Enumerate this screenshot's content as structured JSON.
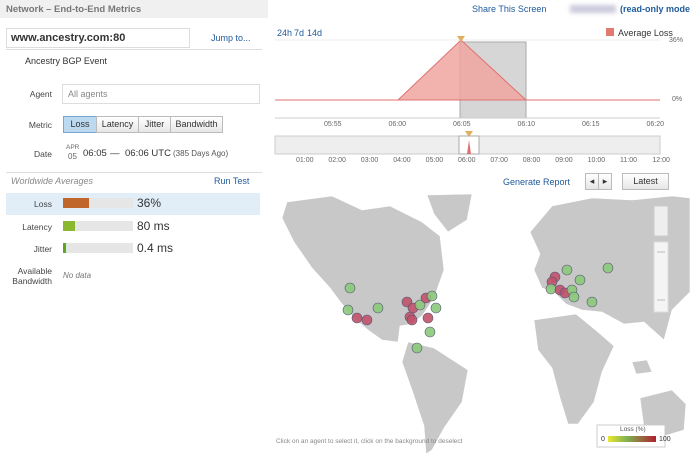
{
  "header": {
    "title": "Network – End-to-End Metrics",
    "share": "Share This Screen",
    "mode": "(read-only mode)"
  },
  "sidebar": {
    "target": "www.ancestry.com:80",
    "jump": "Jump to...",
    "event": "Ancestry BGP Event",
    "agent_label": "Agent",
    "agent_value": "All agents",
    "metric_label": "Metric",
    "metrics": [
      "Loss",
      "Latency",
      "Jitter",
      "Bandwidth"
    ],
    "date_label": "Date",
    "date_month": "APR",
    "date_day": "05",
    "time_start": "06:05",
    "dash": "—",
    "time_end": "06:06 UTC",
    "ago": "(385 Days Ago)",
    "averages_title": "Worldwide Averages",
    "run_test": "Run Test",
    "averages": [
      {
        "label": "Loss",
        "value": "36%"
      },
      {
        "label": "Latency",
        "value": "80 ms"
      },
      {
        "label": "Jitter",
        "value": "0.4 ms"
      },
      {
        "label": "Available Bandwidth",
        "value": "No data"
      }
    ]
  },
  "timeline": {
    "ranges": [
      "24h",
      "7d",
      "14d"
    ],
    "legend": "Average Loss",
    "yticks": [
      "36%",
      "0%"
    ],
    "xticks": [
      "05:55",
      "06:00",
      "06:05",
      "06:10",
      "06:15",
      "06:20"
    ],
    "nav_ticks": [
      "01:00",
      "02:00",
      "03:00",
      "04:00",
      "05:00",
      "06:00",
      "07:00",
      "08:00",
      "09:00",
      "10:00",
      "11:00",
      "12:00"
    ],
    "report": "Generate Report",
    "latest": "Latest"
  },
  "map": {
    "hint": "Click on an agent to select it, click on the background to deselect",
    "legend_title": "Loss (%)",
    "legend_min": "0",
    "legend_max": "100"
  }
}
